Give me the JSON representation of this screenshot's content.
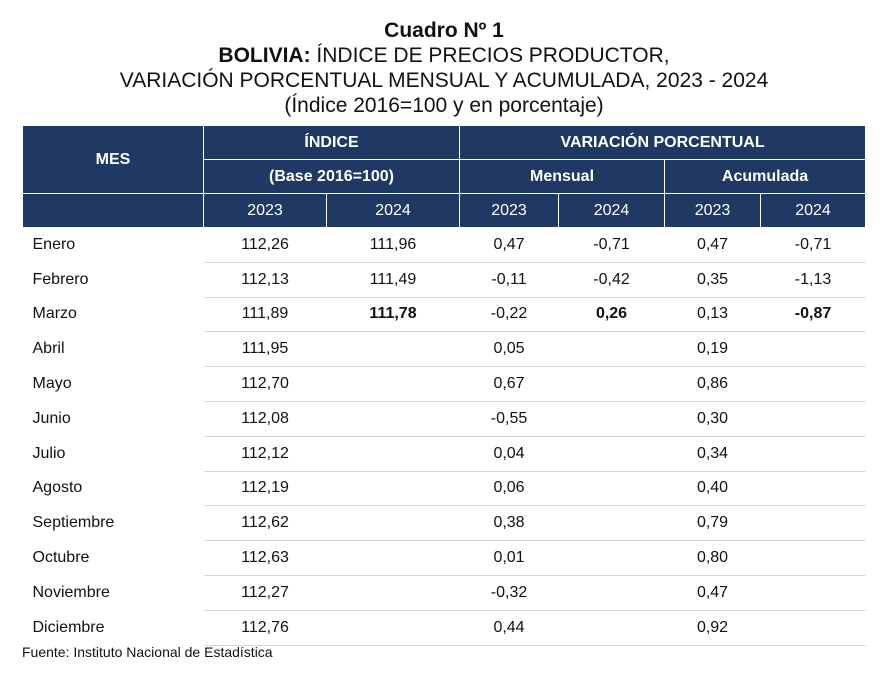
{
  "header": {
    "cuadro": "Cuadro Nº 1",
    "country": "BOLIVIA:",
    "title_rest": " ÍNDICE DE PRECIOS PRODUCTOR,",
    "title_line2": "VARIACIÓN PORCENTUAL MENSUAL Y ACUMULADA, 2023 - 2024",
    "subtitle": "(Índice 2016=100 y en porcentaje)"
  },
  "table": {
    "col_mes": "MES",
    "group_indice": "ÍNDICE",
    "group_indice_sub": "(Base 2016=100)",
    "group_variacion": "VARIACIÓN PORCENTUAL",
    "sub_mensual": "Mensual",
    "sub_acumulada": "Acumulada",
    "years": [
      "2023",
      "2024",
      "2023",
      "2024",
      "2023",
      "2024"
    ],
    "rows": [
      {
        "mes": "Enero",
        "values": [
          "112,26",
          "111,96",
          "0,47",
          "-0,71",
          "0,47",
          "-0,71"
        ]
      },
      {
        "mes": "Febrero",
        "values": [
          "112,13",
          "111,49",
          "-0,11",
          "-0,42",
          "0,35",
          "-1,13"
        ]
      },
      {
        "mes": "Marzo",
        "values": [
          "111,89",
          "111,78",
          "-0,22",
          "0,26",
          "0,13",
          "-0,87"
        ]
      },
      {
        "mes": "Abril",
        "values": [
          "111,95",
          null,
          "0,05",
          null,
          "0,19",
          null
        ]
      },
      {
        "mes": "Mayo",
        "values": [
          "112,70",
          null,
          "0,67",
          null,
          "0,86",
          null
        ]
      },
      {
        "mes": "Junio",
        "values": [
          "112,08",
          null,
          "-0,55",
          null,
          "0,30",
          null
        ]
      },
      {
        "mes": "Julio",
        "values": [
          "112,12",
          null,
          "0,04",
          null,
          "0,34",
          null
        ]
      },
      {
        "mes": "Agosto",
        "values": [
          "112,19",
          null,
          "0,06",
          null,
          "0,40",
          null
        ]
      },
      {
        "mes": "Septiembre",
        "values": [
          "112,62",
          null,
          "0,38",
          null,
          "0,79",
          null
        ]
      },
      {
        "mes": "Octubre",
        "values": [
          "112,63",
          null,
          "0,01",
          null,
          "0,80",
          null
        ]
      },
      {
        "mes": "Noviembre",
        "values": [
          "112,27",
          null,
          "-0,32",
          null,
          "0,47",
          null
        ]
      },
      {
        "mes": "Diciembre",
        "values": [
          "112,76",
          null,
          "0,44",
          null,
          "0,92",
          null
        ]
      }
    ]
  },
  "footer": {
    "source": "Fuente: Instituto Nacional de Estadística"
  }
}
